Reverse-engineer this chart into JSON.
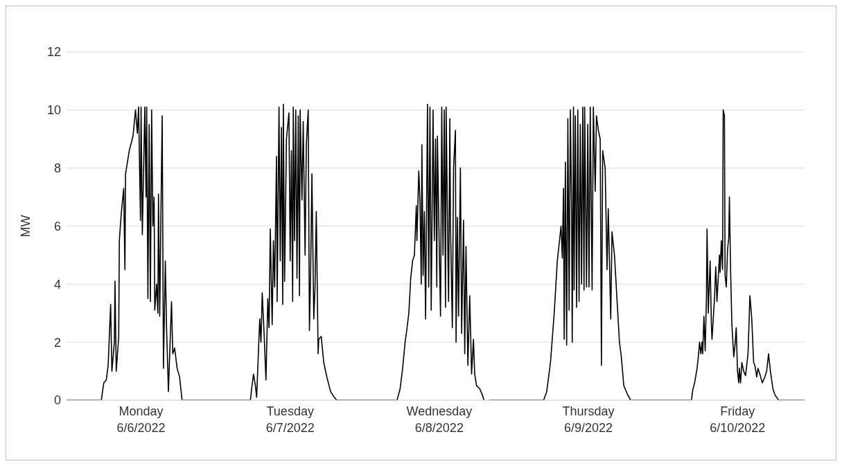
{
  "chart_data": {
    "type": "line",
    "ylabel": "MW",
    "color": "#000000",
    "marker": "none",
    "line_style": "solid",
    "grid": "y",
    "xlim": [
      "2022-06-06T00:00",
      "2022-06-10T22:48"
    ],
    "ylim": [
      0,
      12
    ],
    "yticks": [
      0,
      2,
      4,
      6,
      8,
      10,
      12
    ],
    "xticks": [
      {
        "value": "2022-06-06T12:00",
        "label": "Monday\n6/6/2022"
      },
      {
        "value": "2022-06-07T12:00",
        "label": "Tuesday\n6/7/2022"
      },
      {
        "value": "2022-06-08T12:00",
        "label": "Wednesday\n6/8/2022"
      },
      {
        "value": "2022-06-09T12:00",
        "label": "Thursday\n6/9/2022"
      },
      {
        "value": "2022-06-10T12:00",
        "label": "Friday\n6/10/2022"
      }
    ],
    "x": [
      "2022-06-06T00:00",
      "2022-06-06T05:36",
      "2022-06-06T06:00",
      "2022-06-06T06:24",
      "2022-06-06T06:42",
      "2022-06-06T07:06",
      "2022-06-06T07:18",
      "2022-06-06T07:42",
      "2022-06-06T07:48",
      "2022-06-06T08:00",
      "2022-06-06T08:24",
      "2022-06-06T08:30",
      "2022-06-06T08:48",
      "2022-06-06T09:12",
      "2022-06-06T09:24",
      "2022-06-06T09:30",
      "2022-06-06T10:06",
      "2022-06-06T10:42",
      "2022-06-06T11:06",
      "2022-06-06T11:24",
      "2022-06-06T11:36",
      "2022-06-06T11:54",
      "2022-06-06T12:00",
      "2022-06-06T12:12",
      "2022-06-06T12:30",
      "2022-06-06T12:36",
      "2022-06-06T12:48",
      "2022-06-06T12:54",
      "2022-06-06T13:06",
      "2022-06-06T13:18",
      "2022-06-06T13:30",
      "2022-06-06T13:42",
      "2022-06-06T13:54",
      "2022-06-06T14:06",
      "2022-06-06T14:12",
      "2022-06-06T14:30",
      "2022-06-06T14:42",
      "2022-06-06T14:48",
      "2022-06-06T15:00",
      "2022-06-06T15:12",
      "2022-06-06T15:24",
      "2022-06-06T15:36",
      "2022-06-06T15:54",
      "2022-06-06T16:06",
      "2022-06-06T16:24",
      "2022-06-06T16:54",
      "2022-06-06T17:06",
      "2022-06-06T17:24",
      "2022-06-06T17:48",
      "2022-06-06T18:12",
      "2022-06-06T18:36",
      "2022-06-07T05:36",
      "2022-06-07T05:48",
      "2022-06-07T06:06",
      "2022-06-07T06:24",
      "2022-06-07T06:36",
      "2022-06-07T07:06",
      "2022-06-07T07:18",
      "2022-06-07T07:30",
      "2022-06-07T07:48",
      "2022-06-07T08:06",
      "2022-06-07T08:24",
      "2022-06-07T08:36",
      "2022-06-07T08:48",
      "2022-06-07T09:06",
      "2022-06-07T09:18",
      "2022-06-07T09:30",
      "2022-06-07T09:48",
      "2022-06-07T09:54",
      "2022-06-07T10:12",
      "2022-06-07T10:24",
      "2022-06-07T10:36",
      "2022-06-07T10:48",
      "2022-06-07T10:54",
      "2022-06-07T11:06",
      "2022-06-07T11:24",
      "2022-06-07T11:48",
      "2022-06-07T12:00",
      "2022-06-07T12:12",
      "2022-06-07T12:24",
      "2022-06-07T12:30",
      "2022-06-07T12:42",
      "2022-06-07T12:54",
      "2022-06-07T13:06",
      "2022-06-07T13:18",
      "2022-06-07T13:30",
      "2022-06-07T13:36",
      "2022-06-07T13:54",
      "2022-06-07T14:06",
      "2022-06-07T14:24",
      "2022-06-07T14:36",
      "2022-06-07T14:54",
      "2022-06-07T15:06",
      "2022-06-07T15:18",
      "2022-06-07T15:30",
      "2022-06-07T15:48",
      "2022-06-07T16:00",
      "2022-06-07T16:12",
      "2022-06-07T16:30",
      "2022-06-07T16:36",
      "2022-06-07T17:00",
      "2022-06-07T17:24",
      "2022-06-07T17:54",
      "2022-06-07T18:30",
      "2022-06-07T19:06",
      "2022-06-07T19:30",
      "2022-06-08T05:12",
      "2022-06-08T05:42",
      "2022-06-08T06:06",
      "2022-06-08T06:30",
      "2022-06-08T06:42",
      "2022-06-08T07:06",
      "2022-06-08T07:24",
      "2022-06-08T07:42",
      "2022-06-08T08:00",
      "2022-06-08T08:18",
      "2022-06-08T08:24",
      "2022-06-08T08:42",
      "2022-06-08T08:54",
      "2022-06-08T09:06",
      "2022-06-08T09:12",
      "2022-06-08T09:24",
      "2022-06-08T09:36",
      "2022-06-08T09:48",
      "2022-06-08T10:06",
      "2022-06-08T10:18",
      "2022-06-08T10:30",
      "2022-06-08T10:42",
      "2022-06-08T11:00",
      "2022-06-08T11:12",
      "2022-06-08T11:24",
      "2022-06-08T11:36",
      "2022-06-08T11:42",
      "2022-06-08T12:00",
      "2022-06-08T12:12",
      "2022-06-08T12:24",
      "2022-06-08T12:36",
      "2022-06-08T12:48",
      "2022-06-08T13:00",
      "2022-06-08T13:06",
      "2022-06-08T13:24",
      "2022-06-08T13:30",
      "2022-06-08T13:42",
      "2022-06-08T13:48",
      "2022-06-08T14:06",
      "2022-06-08T14:18",
      "2022-06-08T14:36",
      "2022-06-08T14:42",
      "2022-06-08T14:54",
      "2022-06-08T15:06",
      "2022-06-08T15:24",
      "2022-06-08T15:36",
      "2022-06-08T15:54",
      "2022-06-08T16:06",
      "2022-06-08T16:18",
      "2022-06-08T16:36",
      "2022-06-08T16:54",
      "2022-06-08T17:12",
      "2022-06-08T17:30",
      "2022-06-08T17:42",
      "2022-06-08T18:00",
      "2022-06-08T18:30",
      "2022-06-08T18:54",
      "2022-06-08T19:12",
      "2022-06-08T19:36",
      "2022-06-08T20:00",
      "2022-06-09T04:48",
      "2022-06-09T05:18",
      "2022-06-09T05:54",
      "2022-06-09T06:30",
      "2022-06-09T07:00",
      "2022-06-09T07:36",
      "2022-06-09T07:48",
      "2022-06-09T08:00",
      "2022-06-09T08:06",
      "2022-06-09T08:18",
      "2022-06-09T08:30",
      "2022-06-09T08:42",
      "2022-06-09T08:54",
      "2022-06-09T09:06",
      "2022-06-09T09:18",
      "2022-06-09T09:24",
      "2022-06-09T09:36",
      "2022-06-09T09:42",
      "2022-06-09T09:54",
      "2022-06-09T10:06",
      "2022-06-09T10:18",
      "2022-06-09T10:30",
      "2022-06-09T10:42",
      "2022-06-09T10:54",
      "2022-06-09T11:06",
      "2022-06-09T11:18",
      "2022-06-09T11:24",
      "2022-06-09T11:42",
      "2022-06-09T11:54",
      "2022-06-09T12:06",
      "2022-06-09T12:18",
      "2022-06-09T12:36",
      "2022-06-09T12:48",
      "2022-06-09T13:06",
      "2022-06-09T13:18",
      "2022-06-09T13:36",
      "2022-06-09T13:54",
      "2022-06-09T14:06",
      "2022-06-09T14:18",
      "2022-06-09T14:42",
      "2022-06-09T15:00",
      "2022-06-09T15:12",
      "2022-06-09T15:36",
      "2022-06-09T15:48",
      "2022-06-09T16:12",
      "2022-06-09T16:36",
      "2022-06-09T17:00",
      "2022-06-09T17:18",
      "2022-06-09T17:42",
      "2022-06-09T18:18",
      "2022-06-09T18:48",
      "2022-06-10T04:36",
      "2022-06-10T04:48",
      "2022-06-10T05:06",
      "2022-06-10T05:30",
      "2022-06-10T05:42",
      "2022-06-10T05:54",
      "2022-06-10T06:06",
      "2022-06-10T06:18",
      "2022-06-10T06:24",
      "2022-06-10T06:36",
      "2022-06-10T06:48",
      "2022-06-10T07:00",
      "2022-06-10T07:06",
      "2022-06-10T07:18",
      "2022-06-10T07:36",
      "2022-06-10T07:48",
      "2022-06-10T07:54",
      "2022-06-10T08:18",
      "2022-06-10T08:30",
      "2022-06-10T08:42",
      "2022-06-10T09:06",
      "2022-06-10T09:12",
      "2022-06-10T09:24",
      "2022-06-10T09:36",
      "2022-06-10T09:42",
      "2022-06-10T09:54",
      "2022-06-10T10:00",
      "2022-06-10T10:12",
      "2022-06-10T10:24",
      "2022-06-10T10:36",
      "2022-06-10T10:42",
      "2022-06-10T10:54",
      "2022-06-10T11:06",
      "2022-06-10T11:24",
      "2022-06-10T11:36",
      "2022-06-10T11:48",
      "2022-06-10T12:00",
      "2022-06-10T12:12",
      "2022-06-10T12:18",
      "2022-06-10T12:30",
      "2022-06-10T12:42",
      "2022-06-10T13:00",
      "2022-06-10T13:18",
      "2022-06-10T13:42",
      "2022-06-10T14:00",
      "2022-06-10T14:18",
      "2022-06-10T14:36",
      "2022-06-10T14:48",
      "2022-06-10T15:06",
      "2022-06-10T15:18",
      "2022-06-10T15:36",
      "2022-06-10T16:00",
      "2022-06-10T16:24",
      "2022-06-10T16:42",
      "2022-06-10T17:00",
      "2022-06-10T17:18",
      "2022-06-10T17:42",
      "2022-06-10T18:00",
      "2022-06-10T18:36",
      "2022-06-10T22:48"
    ],
    "values": [
      0,
      0,
      0.6,
      0.7,
      1.2,
      3.3,
      1.0,
      2.0,
      4.1,
      1.0,
      2.2,
      5.5,
      6.4,
      7.3,
      4.5,
      7.8,
      8.6,
      9.1,
      10.0,
      9.2,
      10.1,
      6.2,
      10.1,
      5.7,
      9.0,
      10.1,
      7.0,
      10.1,
      3.5,
      9.5,
      3.4,
      10.0,
      6.0,
      7.0,
      3.1,
      4.0,
      3.0,
      7.1,
      2.9,
      6.5,
      9.8,
      1.1,
      4.8,
      2.5,
      0.3,
      3.4,
      1.6,
      1.8,
      1.1,
      0.8,
      0,
      0,
      0.4,
      0.9,
      0.5,
      0.1,
      2.8,
      2.0,
      3.7,
      2.3,
      0.7,
      3.5,
      2.5,
      5.9,
      2.6,
      5.5,
      3.9,
      8.4,
      3.4,
      10.1,
      4.8,
      9.4,
      3.3,
      10.2,
      4.1,
      9.0,
      9.9,
      4.8,
      8.6,
      3.4,
      10.1,
      5.5,
      10.0,
      4.2,
      9.8,
      3.6,
      10.0,
      6.9,
      9.6,
      5.0,
      8.8,
      10.0,
      2.4,
      4.5,
      7.8,
      2.8,
      3.9,
      6.5,
      1.6,
      2.1,
      2.2,
      1.3,
      0.8,
      0.3,
      0.1,
      0,
      0,
      0.4,
      1.1,
      2.0,
      2.3,
      3.0,
      4.2,
      4.8,
      5.0,
      6.7,
      5.5,
      7.9,
      6.8,
      4.0,
      8.8,
      4.3,
      6.5,
      2.8,
      10.2,
      3.9,
      10.1,
      3.1,
      10.0,
      5.5,
      9.0,
      3.9,
      9.1,
      5.2,
      2.9,
      10.1,
      5.0,
      10.0,
      3.2,
      10.1,
      4.8,
      3.4,
      9.7,
      6.1,
      2.5,
      8.0,
      9.3,
      2.0,
      6.3,
      2.9,
      8.0,
      2.3,
      6.2,
      1.6,
      5.3,
      1.2,
      3.6,
      0.9,
      2.1,
      0.9,
      0.5,
      0.4,
      0.2,
      0,
      null,
      0,
      0,
      0.3,
      1.3,
      3.0,
      4.8,
      6.0,
      4.9,
      7.3,
      2.1,
      8.2,
      1.9,
      9.7,
      3.1,
      10.0,
      6.5,
      2.0,
      10.1,
      3.8,
      9.8,
      3.2,
      10.0,
      3.4,
      9.5,
      4.0,
      10.1,
      3.8,
      10.1,
      3.9,
      9.5,
      3.9,
      10.1,
      3.8,
      10.1,
      7.2,
      9.8,
      9.3,
      9.0,
      1.2,
      8.6,
      8.0,
      4.5,
      6.6,
      2.8,
      5.8,
      5.0,
      3.5,
      2.0,
      1.5,
      0.5,
      0.2,
      0,
      0,
      0.35,
      0.6,
      1.1,
      1.5,
      2.0,
      1.6,
      2.0,
      1.6,
      2.9,
      1.7,
      3.5,
      5.9,
      3.0,
      4.8,
      2.6,
      2.1,
      3.5,
      4.6,
      3.4,
      5.0,
      4.4,
      5.5,
      4.5,
      10.0,
      9.8,
      4.3,
      3.9,
      5.2,
      5.6,
      7.0,
      4.4,
      2.6,
      1.5,
      1.9,
      2.5,
      1.0,
      0.6,
      1.1,
      0.6,
      1.3,
      1.0,
      0.85,
      1.6,
      3.6,
      2.8,
      1.3,
      1.2,
      0.8,
      1.1,
      0.9,
      0.6,
      0.8,
      1.0,
      1.6,
      1.0,
      0.4,
      0.2,
      0,
      0
    ]
  }
}
